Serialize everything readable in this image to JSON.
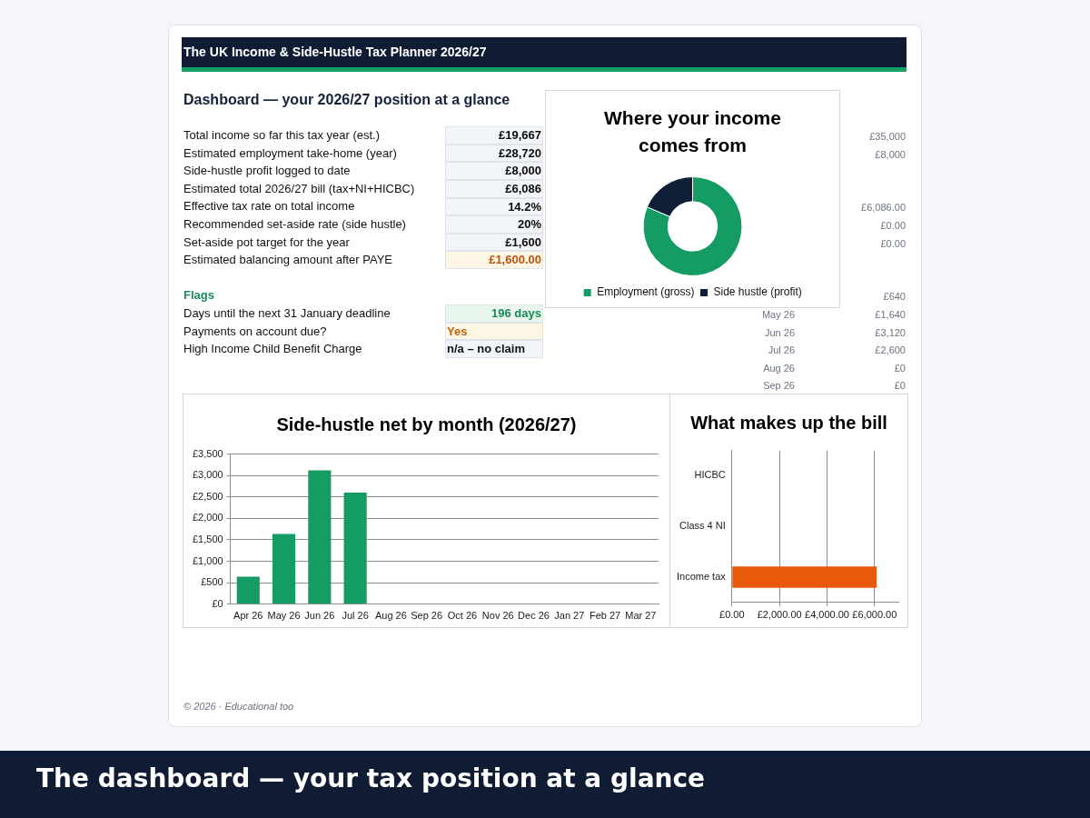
{
  "chart_data": [
    {
      "type": "other",
      "title": "The UK Income & Side-Hustle Tax Planner 2026/27",
      "subtitle": "Dashboard — your 2026/27 position at a glance",
      "annotations": [
        "Total income so far this tax year (est.)",
        "£19,667",
        "Estimated employment take-home (year)",
        "£28,720",
        "Side-hustle profit logged to date",
        "£8,000",
        "Estimated total 2026/27 bill (tax+NI+HICBC)",
        "£6,086",
        "Effective tax rate on total income",
        "14.2%",
        "Recommended set-aside rate (side hustle)",
        "20%",
        "Set-aside pot target for the year",
        "£1,600",
        "Estimated balancing amount after PAYE",
        "£1,600.00",
        "Flags",
        "Days until the next 31 January deadline",
        "196 days",
        "Payments on account due?",
        "Yes",
        "High Income Child Benefit Charge",
        "n/a – no claim",
        "© 2026 · Educational too",
        "The dashboard — your tax position at a glance"
      ]
    },
    {
      "type": "donut",
      "title": "Where your income comes from",
      "categories": [
        "Employment (gross)",
        "Side hustle (profit)"
      ],
      "values": [
        81.4,
        18.6
      ],
      "colors": [
        "#149c64",
        "#0f1f38"
      ],
      "legend": "bottom"
    },
    {
      "type": "other",
      "annotations": [
        "£35,000",
        "£8,000",
        "£6,086.00",
        "£0.00",
        "£0.00",
        "£640",
        "May 26",
        "£1,640",
        "Jun 26",
        "£3,120",
        "Jul 26",
        "£2,600",
        "Aug 26",
        "£0",
        "Sep 26",
        "£0"
      ]
    },
    {
      "type": "bar",
      "title": "Side-hustle net by month (2026/27)",
      "categories": [
        "Apr 26",
        "May 26",
        "Jun 26",
        "Jul 26",
        "Aug 26",
        "Sep 26",
        "Oct 26",
        "Nov 26",
        "Dec 26",
        "Jan 27",
        "Feb 27",
        "Mar 27"
      ],
      "values": [
        640,
        1640,
        3120,
        2600,
        0,
        0,
        0,
        0,
        0,
        0,
        0,
        0
      ],
      "color": "#149c64",
      "ylim": [
        0,
        3500
      ],
      "yticks": [
        {
          "value": 0,
          "label": "£0"
        },
        {
          "value": 500,
          "label": "£500"
        },
        {
          "value": 1000,
          "label": "£1,000"
        },
        {
          "value": 1500,
          "label": "£1,500"
        },
        {
          "value": 2000,
          "label": "£2,000"
        },
        {
          "value": 2500,
          "label": "£2,500"
        },
        {
          "value": 3000,
          "label": "£3,000"
        },
        {
          "value": 3500,
          "label": "£3,500"
        }
      ],
      "grid": "y"
    },
    {
      "type": "bar",
      "orientation": "horizontal",
      "title": "What makes up the bill",
      "categories": [
        "HICBC",
        "Class 4 NI",
        "Income tax"
      ],
      "values": [
        0,
        0,
        6086
      ],
      "color": "#e8590c",
      "xlim": [
        0,
        7000
      ],
      "xticks": [
        {
          "value": 0,
          "label": "£0.00"
        },
        {
          "value": 2000,
          "label": "£2,000.00"
        },
        {
          "value": 4000,
          "label": "£4,000.00"
        },
        {
          "value": 6000,
          "label": "£6,000.00"
        }
      ],
      "grid": "x"
    }
  ]
}
